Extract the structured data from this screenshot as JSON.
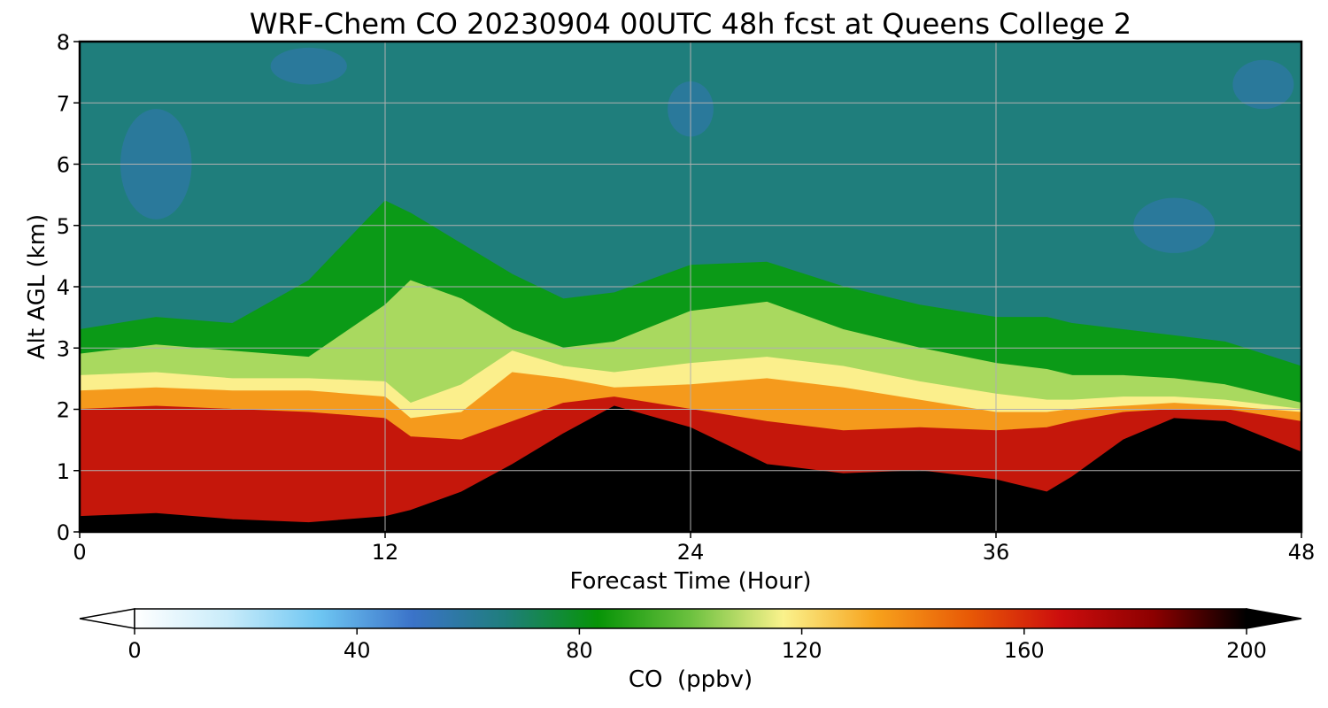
{
  "chart_data": {
    "type": "heatmap",
    "title": "WRF-Chem CO  20230904 00UTC 48h fcst at Queens College 2",
    "xlabel": "Forecast Time (Hour)",
    "ylabel": "Alt AGL (km)",
    "xlim": [
      0,
      48
    ],
    "ylim": [
      0,
      8
    ],
    "xticks": [
      0,
      12,
      24,
      36,
      48
    ],
    "yticks": [
      0,
      1,
      2,
      3,
      4,
      5,
      6,
      7,
      8
    ],
    "grid": true,
    "colorbar": {
      "label": "CO  (ppbv)",
      "range": [
        0,
        200
      ],
      "ticks": [
        0,
        40,
        80,
        120,
        160,
        200
      ],
      "extend": "both",
      "orientation": "horizontal"
    },
    "colormap": [
      "#ffffff",
      "#c9ecfa",
      "#6ec6f2",
      "#3b73c9",
      "#1f7e7c",
      "#079407",
      "#6cc13f",
      "#faf28c",
      "#f7a21c",
      "#e85a06",
      "#cc0d0d",
      "#8c0000",
      "#000000"
    ],
    "series": [
      {
        "name": "CO",
        "x": [
          0,
          3,
          6,
          9,
          12,
          13,
          15,
          17,
          19,
          21,
          24,
          27,
          30,
          33,
          36,
          38,
          39,
          41,
          43,
          45,
          48
        ],
        "layers": [
          {
            "field": "black_top_km",
            "values": [
              0.25,
              0.3,
              0.2,
              0.15,
              0.25,
              0.35,
              0.65,
              1.1,
              1.6,
              2.05,
              1.7,
              1.1,
              0.95,
              1.0,
              0.85,
              0.65,
              0.9,
              1.5,
              1.85,
              1.8,
              1.3
            ]
          },
          {
            "field": "red_top_km",
            "values": [
              2.0,
              2.05,
              2.0,
              1.95,
              1.85,
              1.55,
              1.5,
              1.8,
              2.1,
              2.2,
              2.0,
              1.8,
              1.65,
              1.7,
              1.65,
              1.7,
              1.8,
              1.95,
              2.0,
              2.0,
              1.8
            ]
          },
          {
            "field": "orange_top_km",
            "values": [
              2.3,
              2.35,
              2.3,
              2.3,
              2.2,
              1.85,
              1.95,
              2.6,
              2.5,
              2.35,
              2.4,
              2.5,
              2.35,
              2.15,
              1.95,
              1.95,
              2.0,
              2.05,
              2.1,
              2.05,
              1.95
            ]
          },
          {
            "field": "yellow_top_km",
            "values": [
              2.55,
              2.6,
              2.5,
              2.5,
              2.45,
              2.1,
              2.4,
              2.95,
              2.7,
              2.6,
              2.75,
              2.85,
              2.7,
              2.45,
              2.25,
              2.15,
              2.15,
              2.2,
              2.2,
              2.15,
              2.0
            ]
          },
          {
            "field": "lightgreen_top_km",
            "values": [
              2.9,
              3.05,
              2.95,
              2.85,
              3.7,
              4.1,
              3.8,
              3.3,
              3.0,
              3.1,
              3.6,
              3.75,
              3.3,
              3.0,
              2.75,
              2.65,
              2.55,
              2.55,
              2.5,
              2.4,
              2.1
            ]
          },
          {
            "field": "green_top_km",
            "values": [
              3.3,
              3.5,
              3.4,
              4.1,
              5.4,
              5.2,
              4.7,
              4.2,
              3.8,
              3.9,
              4.35,
              4.4,
              4.0,
              3.7,
              3.5,
              3.5,
              3.4,
              3.3,
              3.2,
              3.1,
              2.7
            ]
          }
        ]
      }
    ]
  }
}
